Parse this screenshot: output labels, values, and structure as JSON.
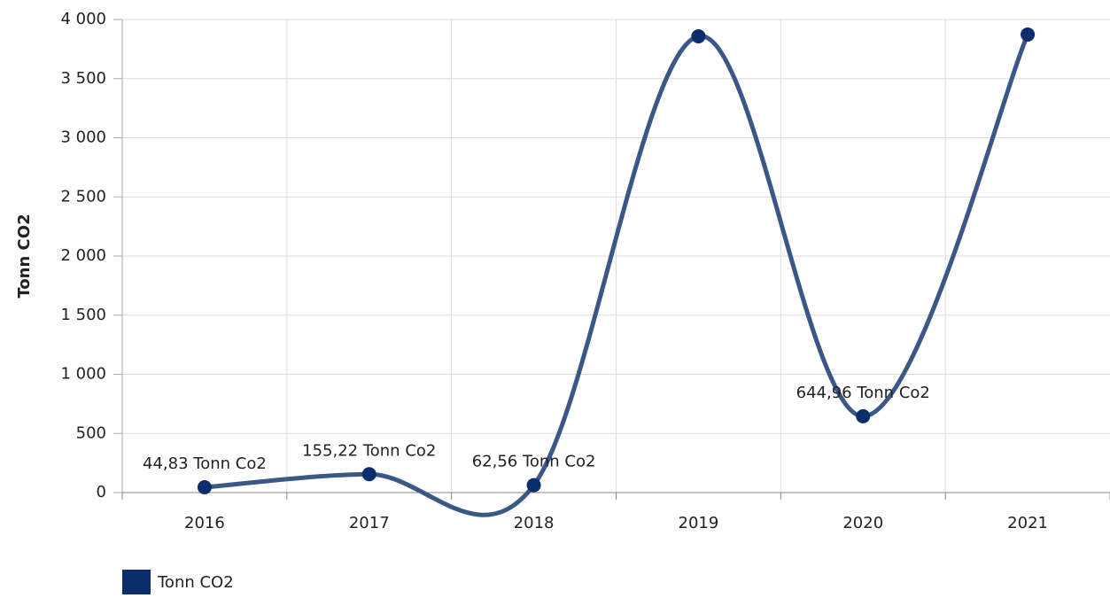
{
  "chart_data": {
    "type": "line",
    "y_axis_label": "Tonn CO2",
    "categories": [
      "2016",
      "2017",
      "2018",
      "2019",
      "2020",
      "2021"
    ],
    "series": [
      {
        "name": "Tonn CO2",
        "color": "#3a5787",
        "marker_color": "#0b2d6b",
        "values": [
          44.83,
          155.22,
          62.56,
          3858,
          644.96,
          3873
        ],
        "value_labels": [
          "44,83 Tonn Co2",
          "155,22 Tonn Co2",
          "62,56 Tonn Co2",
          null,
          "644,96 Tonn Co2",
          null
        ]
      }
    ],
    "ylim": [
      0,
      4000
    ],
    "yticks": [
      0,
      500,
      {
        "value": 1000,
        "label": "1 000"
      },
      {
        "value": 1500,
        "label": "1 500"
      },
      {
        "value": 2000,
        "label": "2 000"
      },
      {
        "value": 2500,
        "label": "2 500"
      },
      {
        "value": 3000,
        "label": "3 000"
      },
      {
        "value": 3500,
        "label": "3 500"
      },
      {
        "value": 4000,
        "label": "4 000"
      }
    ],
    "grid": true,
    "smooth": true,
    "legend": "bottom-left"
  }
}
